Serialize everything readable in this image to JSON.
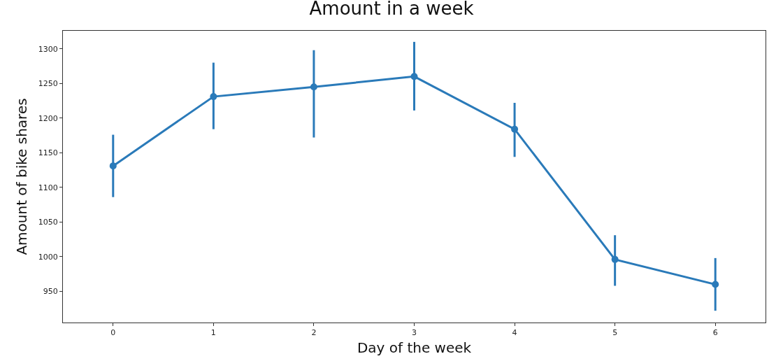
{
  "chart_data": {
    "type": "line",
    "title": "Amount in a week",
    "xlabel": "Day of the week",
    "ylabel": "Amount of bike shares",
    "x": [
      0,
      1,
      2,
      3,
      4,
      5,
      6
    ],
    "series": [
      {
        "color": "#2a7ab9",
        "values": [
          1131,
          1231,
          1245,
          1260,
          1184,
          996,
          960
        ],
        "errors": [
          [
            1086,
            1176
          ],
          [
            1184,
            1280
          ],
          [
            1172,
            1298
          ],
          [
            1211,
            1310
          ],
          [
            1144,
            1222
          ],
          [
            958,
            1031
          ],
          [
            922,
            998
          ]
        ]
      }
    ],
    "xlim": [
      -0.5,
      6.5
    ],
    "xticks": [
      0,
      1,
      2,
      3,
      4,
      5,
      6
    ],
    "ylim": [
      905,
      1326
    ],
    "yticks": [
      950,
      1000,
      1050,
      1100,
      1150,
      1200,
      1250,
      1300
    ],
    "marker": "circle",
    "line_style": "solid"
  }
}
